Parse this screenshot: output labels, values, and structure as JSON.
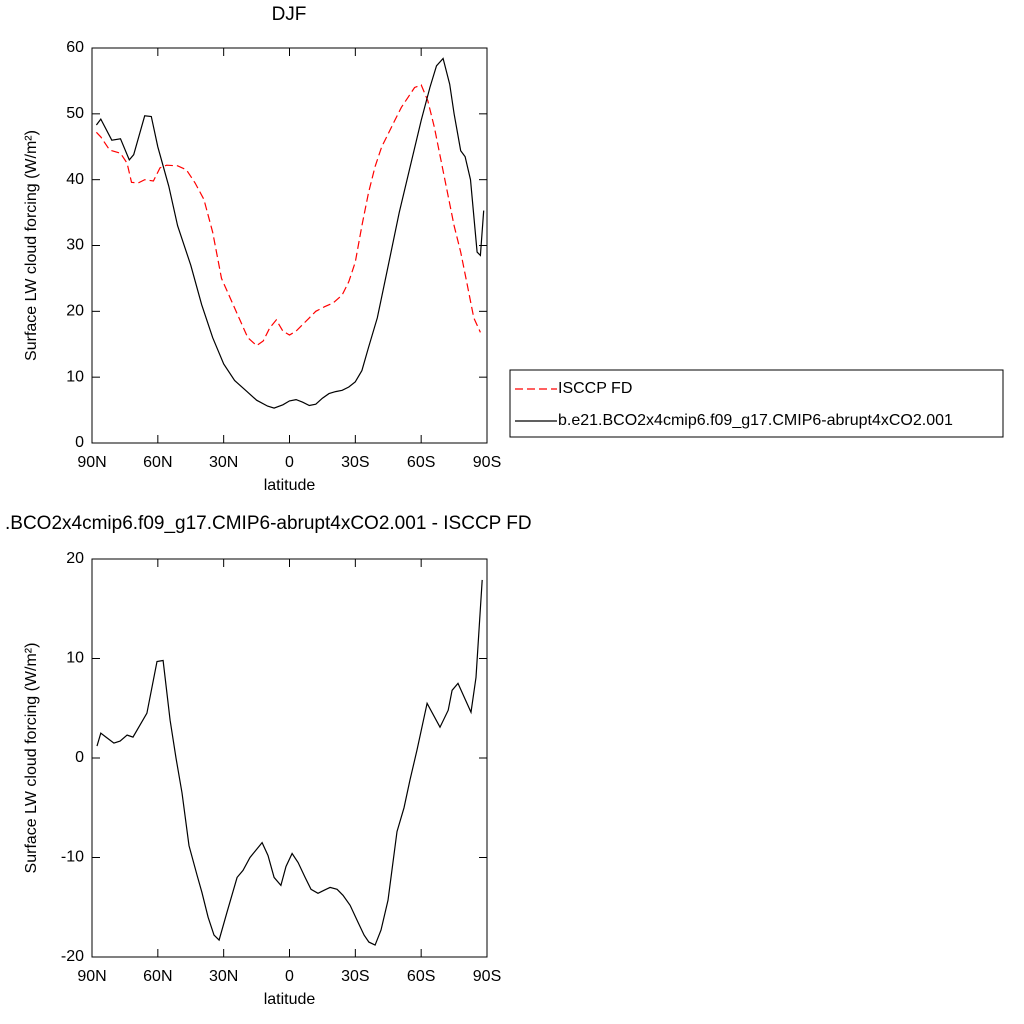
{
  "chart_data": [
    {
      "type": "line",
      "title": "DJF",
      "xlabel": "latitude",
      "ylabel": "Surface LW cloud forcing (W/m²)",
      "xlim": [
        90,
        -90
      ],
      "xticks": [
        {
          "value": 90,
          "label": "90N"
        },
        {
          "value": 60,
          "label": "60N"
        },
        {
          "value": 30,
          "label": "30N"
        },
        0,
        {
          "value": -30,
          "label": "30S"
        },
        {
          "value": -60,
          "label": "60S"
        },
        {
          "value": -90,
          "label": "90S"
        }
      ],
      "ylim": [
        0,
        60
      ],
      "yticks": [
        0,
        10,
        20,
        30,
        40,
        50,
        60
      ],
      "legend": "right",
      "series": [
        {
          "name": "ISCCP FD",
          "color": "#ff0000",
          "linestyle": "dashed",
          "x": [
            88,
            86,
            82,
            77,
            74,
            72,
            69,
            66,
            62,
            59,
            56,
            51,
            47,
            43,
            39,
            35,
            31,
            27,
            23,
            19,
            15,
            12,
            9,
            6,
            3,
            0,
            -3,
            -6,
            -9,
            -12,
            -16,
            -20,
            -24,
            -27,
            -30,
            -33,
            -36,
            -39,
            -42,
            -45,
            -48,
            -51,
            -54,
            -57,
            -60,
            -63,
            -66,
            -69,
            -72,
            -75,
            -78,
            -81,
            -84,
            -87
          ],
          "values": [
            47.2,
            46.5,
            44.5,
            44,
            42.5,
            39.6,
            39.5,
            40,
            39.8,
            41.8,
            42.2,
            42.1,
            41.5,
            39.5,
            37,
            32,
            25,
            22,
            19,
            16,
            14.8,
            15.5,
            17.5,
            18.7,
            17,
            16.4,
            17,
            18,
            19,
            20,
            20.7,
            21.3,
            22.5,
            24.5,
            27.5,
            33,
            38,
            42,
            45,
            47,
            49,
            51,
            52.5,
            54,
            54.4,
            52,
            48,
            43,
            38,
            33,
            29,
            24,
            19,
            16.8
          ]
        },
        {
          "name": "b.e21.BCO2x4cmip6.f09_g17.CMIP6-abrupt4xCO2.001",
          "color": "#000000",
          "linestyle": "solid",
          "x": [
            88,
            86,
            81,
            77,
            73,
            71,
            66,
            63,
            60,
            55,
            51,
            45,
            40,
            35,
            30,
            25,
            20,
            15,
            10,
            7,
            3,
            0,
            -3,
            -6,
            -9,
            -12,
            -15,
            -18,
            -21,
            -24,
            -27,
            -30,
            -33,
            -36,
            -40,
            -45,
            -50,
            -55,
            -60,
            -64,
            -67,
            -70,
            -73,
            -75,
            -78,
            -80,
            -82.5,
            -85.5,
            -87,
            -88.5
          ],
          "values": [
            48.3,
            49.2,
            46,
            46.2,
            43,
            43.8,
            49.7,
            49.6,
            45,
            39,
            33,
            27,
            21,
            16,
            12,
            9.5,
            8,
            6.5,
            5.6,
            5.3,
            5.8,
            6.4,
            6.6,
            6.2,
            5.7,
            5.9,
            6.8,
            7.5,
            7.8,
            8,
            8.5,
            9.3,
            11,
            14.5,
            19,
            27,
            35,
            42,
            49,
            54,
            57.3,
            58.4,
            54.5,
            50,
            44.4,
            43.5,
            40,
            29,
            28.5,
            35.3
          ]
        }
      ]
    },
    {
      "type": "line",
      "title": ".BCO2x4cmip6.f09_g17.CMIP6-abrupt4xCO2.001 - ISCCP FD",
      "xlabel": "latitude",
      "ylabel": "Surface LW cloud forcing (W/m²)",
      "xlim": [
        90,
        -90
      ],
      "xticks": [
        {
          "value": 90,
          "label": "90N"
        },
        {
          "value": 60,
          "label": "60N"
        },
        {
          "value": 30,
          "label": "30N"
        },
        0,
        {
          "value": -30,
          "label": "30S"
        },
        {
          "value": -60,
          "label": "60S"
        },
        {
          "value": -90,
          "label": "90S"
        }
      ],
      "ylim": [
        -20,
        20
      ],
      "yticks": [
        -20,
        -10,
        0,
        10,
        20
      ],
      "series": [
        {
          "color": "#000000",
          "linestyle": "solid",
          "x": [
            87.7,
            86,
            83.6,
            80,
            77.2,
            74,
            71.3,
            65,
            60.4,
            57.6,
            54.4,
            51.7,
            49,
            45.8,
            42.1,
            39.9,
            37.1,
            34.4,
            32.1,
            28.5,
            23.9,
            21.2,
            18,
            12.5,
            9.8,
            7,
            3.9,
            1.6,
            -1.2,
            -3.9,
            -7.1,
            -9.8,
            -13,
            -15.7,
            -18.5,
            -21.7,
            -24.4,
            -27.6,
            -31.2,
            -34,
            -36.2,
            -39,
            -41.7,
            -44.9,
            -49,
            -52.2,
            -54.9,
            -58.1,
            -62.7,
            -68.6,
            -72.3,
            -74.1,
            -76.8,
            -82.7,
            -85,
            -87.8
          ],
          "values": [
            1.2,
            2.5,
            2.1,
            1.5,
            1.7,
            2.3,
            2.1,
            4.5,
            9.7,
            9.8,
            3.8,
            0,
            -3.5,
            -8.8,
            -11.8,
            -13.5,
            -16,
            -17.8,
            -18.3,
            -15.5,
            -12,
            -11.3,
            -10,
            -8.5,
            -9.8,
            -12,
            -12.8,
            -10.9,
            -9.6,
            -10.5,
            -12,
            -13.2,
            -13.6,
            -13.3,
            -13,
            -13.2,
            -13.8,
            -14.8,
            -16.5,
            -17.8,
            -18.5,
            -18.8,
            -17.3,
            -14.3,
            -7.4,
            -5,
            -2.2,
            0.8,
            5.5,
            3.1,
            4.8,
            6.8,
            7.5,
            4.6,
            8.1,
            17.9
          ]
        }
      ]
    }
  ]
}
